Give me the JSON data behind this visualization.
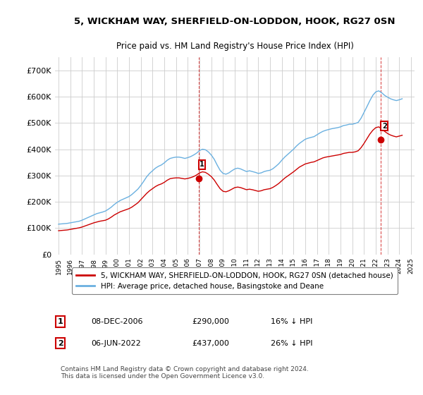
{
  "title": "5, WICKHAM WAY, SHERFIELD-ON-LODDON, HOOK, RG27 0SN",
  "subtitle": "Price paid vs. HM Land Registry's House Price Index (HPI)",
  "legend_line1": "5, WICKHAM WAY, SHERFIELD-ON-LODDON, HOOK, RG27 0SN (detached house)",
  "legend_line2": "HPI: Average price, detached house, Basingstoke and Deane",
  "annotation1_label": "1",
  "annotation1_date": "08-DEC-2006",
  "annotation1_price": "£290,000",
  "annotation1_hpi": "16% ↓ HPI",
  "annotation2_label": "2",
  "annotation2_date": "06-JUN-2022",
  "annotation2_price": "£437,000",
  "annotation2_hpi": "26% ↓ HPI",
  "footer": "Contains HM Land Registry data © Crown copyright and database right 2024.\nThis data is licensed under the Open Government Licence v3.0.",
  "hpi_color": "#6ab0e0",
  "price_color": "#cc0000",
  "marker_color": "#cc0000",
  "annotation_box_color": "#cc0000",
  "background_color": "#ffffff",
  "grid_color": "#cccccc",
  "ylim": [
    0,
    750000
  ],
  "yticks": [
    0,
    100000,
    200000,
    300000,
    400000,
    500000,
    600000,
    700000
  ],
  "ytick_labels": [
    "£0",
    "£100K",
    "£200K",
    "£300K",
    "£400K",
    "£500K",
    "£600K",
    "£700K"
  ],
  "x_start_year": 1995,
  "x_end_year": 2025,
  "sale1_year": 2006.92,
  "sale1_price": 290000,
  "sale2_year": 2022.43,
  "sale2_price": 437000,
  "hpi_years": [
    1995.0,
    1995.25,
    1995.5,
    1995.75,
    1996.0,
    1996.25,
    1996.5,
    1996.75,
    1997.0,
    1997.25,
    1997.5,
    1997.75,
    1998.0,
    1998.25,
    1998.5,
    1998.75,
    1999.0,
    1999.25,
    1999.5,
    1999.75,
    2000.0,
    2000.25,
    2000.5,
    2000.75,
    2001.0,
    2001.25,
    2001.5,
    2001.75,
    2002.0,
    2002.25,
    2002.5,
    2002.75,
    2003.0,
    2003.25,
    2003.5,
    2003.75,
    2004.0,
    2004.25,
    2004.5,
    2004.75,
    2005.0,
    2005.25,
    2005.5,
    2005.75,
    2006.0,
    2006.25,
    2006.5,
    2006.75,
    2007.0,
    2007.25,
    2007.5,
    2007.75,
    2008.0,
    2008.25,
    2008.5,
    2008.75,
    2009.0,
    2009.25,
    2009.5,
    2009.75,
    2010.0,
    2010.25,
    2010.5,
    2010.75,
    2011.0,
    2011.25,
    2011.5,
    2011.75,
    2012.0,
    2012.25,
    2012.5,
    2012.75,
    2013.0,
    2013.25,
    2013.5,
    2013.75,
    2014.0,
    2014.25,
    2014.5,
    2014.75,
    2015.0,
    2015.25,
    2015.5,
    2015.75,
    2016.0,
    2016.25,
    2016.5,
    2016.75,
    2017.0,
    2017.25,
    2017.5,
    2017.75,
    2018.0,
    2018.25,
    2018.5,
    2018.75,
    2019.0,
    2019.25,
    2019.5,
    2019.75,
    2020.0,
    2020.25,
    2020.5,
    2020.75,
    2021.0,
    2021.25,
    2021.5,
    2021.75,
    2022.0,
    2022.25,
    2022.5,
    2022.75,
    2023.0,
    2023.25,
    2023.5,
    2023.75,
    2024.0,
    2024.25
  ],
  "hpi_values": [
    115000,
    116000,
    117000,
    118000,
    120000,
    122000,
    124000,
    126000,
    130000,
    135000,
    140000,
    145000,
    150000,
    155000,
    158000,
    161000,
    165000,
    172000,
    180000,
    190000,
    198000,
    205000,
    210000,
    215000,
    220000,
    228000,
    238000,
    248000,
    262000,
    278000,
    295000,
    308000,
    318000,
    328000,
    335000,
    340000,
    348000,
    358000,
    365000,
    368000,
    370000,
    370000,
    368000,
    365000,
    368000,
    372000,
    378000,
    385000,
    395000,
    400000,
    398000,
    390000,
    378000,
    362000,
    340000,
    320000,
    308000,
    305000,
    310000,
    318000,
    325000,
    328000,
    325000,
    320000,
    315000,
    318000,
    315000,
    312000,
    308000,
    310000,
    315000,
    318000,
    320000,
    326000,
    335000,
    345000,
    358000,
    370000,
    380000,
    390000,
    400000,
    412000,
    422000,
    430000,
    438000,
    442000,
    445000,
    448000,
    455000,
    462000,
    468000,
    472000,
    475000,
    478000,
    480000,
    482000,
    485000,
    490000,
    492000,
    495000,
    495000,
    498000,
    502000,
    518000,
    540000,
    562000,
    585000,
    605000,
    618000,
    622000,
    615000,
    605000,
    598000,
    592000,
    588000,
    585000,
    588000,
    592000
  ],
  "price_years": [
    1995.0,
    1995.25,
    1995.5,
    1995.75,
    1996.0,
    1996.25,
    1996.5,
    1996.75,
    1997.0,
    1997.25,
    1997.5,
    1997.75,
    1998.0,
    1998.25,
    1998.5,
    1998.75,
    1999.0,
    1999.25,
    1999.5,
    1999.75,
    2000.0,
    2000.25,
    2000.5,
    2000.75,
    2001.0,
    2001.25,
    2001.5,
    2001.75,
    2002.0,
    2002.25,
    2002.5,
    2002.75,
    2003.0,
    2003.25,
    2003.5,
    2003.75,
    2004.0,
    2004.25,
    2004.5,
    2004.75,
    2005.0,
    2005.25,
    2005.5,
    2005.75,
    2006.0,
    2006.25,
    2006.5,
    2006.75,
    2007.0,
    2007.25,
    2007.5,
    2007.75,
    2008.0,
    2008.25,
    2008.5,
    2008.75,
    2009.0,
    2009.25,
    2009.5,
    2009.75,
    2010.0,
    2010.25,
    2010.5,
    2010.75,
    2011.0,
    2011.25,
    2011.5,
    2011.75,
    2012.0,
    2012.25,
    2012.5,
    2012.75,
    2013.0,
    2013.25,
    2013.5,
    2013.75,
    2014.0,
    2014.25,
    2014.5,
    2014.75,
    2015.0,
    2015.25,
    2015.5,
    2015.75,
    2016.0,
    2016.25,
    2016.5,
    2016.75,
    2017.0,
    2017.25,
    2017.5,
    2017.75,
    2018.0,
    2018.25,
    2018.5,
    2018.75,
    2019.0,
    2019.25,
    2019.5,
    2019.75,
    2020.0,
    2020.25,
    2020.5,
    2020.75,
    2021.0,
    2021.25,
    2021.5,
    2021.75,
    2022.0,
    2022.25,
    2022.5,
    2022.75,
    2023.0,
    2023.25,
    2023.5,
    2023.75,
    2024.0,
    2024.25
  ],
  "price_values": [
    90000,
    91000,
    92000,
    93000,
    95000,
    97000,
    99000,
    101000,
    104000,
    108000,
    112000,
    116000,
    120000,
    123000,
    126000,
    128000,
    130000,
    135000,
    142000,
    150000,
    156000,
    162000,
    166000,
    170000,
    174000,
    180000,
    188000,
    196000,
    208000,
    220000,
    232000,
    242000,
    250000,
    258000,
    264000,
    268000,
    274000,
    282000,
    288000,
    290000,
    291000,
    291000,
    289000,
    287000,
    289000,
    292000,
    296000,
    302000,
    310000,
    314000,
    312000,
    305000,
    296000,
    283000,
    266000,
    250000,
    240000,
    238000,
    242000,
    248000,
    254000,
    256000,
    254000,
    250000,
    246000,
    248000,
    246000,
    243000,
    240000,
    242000,
    246000,
    248000,
    250000,
    255000,
    262000,
    270000,
    280000,
    290000,
    298000,
    306000,
    314000,
    323000,
    332000,
    338000,
    344000,
    347000,
    350000,
    352000,
    357000,
    362000,
    367000,
    370000,
    372000,
    374000,
    376000,
    378000,
    380000,
    384000,
    386000,
    388000,
    388000,
    390000,
    394000,
    406000,
    422000,
    440000,
    458000,
    472000,
    482000,
    485000,
    478000,
    468000,
    460000,
    454000,
    450000,
    447000,
    450000,
    453000
  ]
}
